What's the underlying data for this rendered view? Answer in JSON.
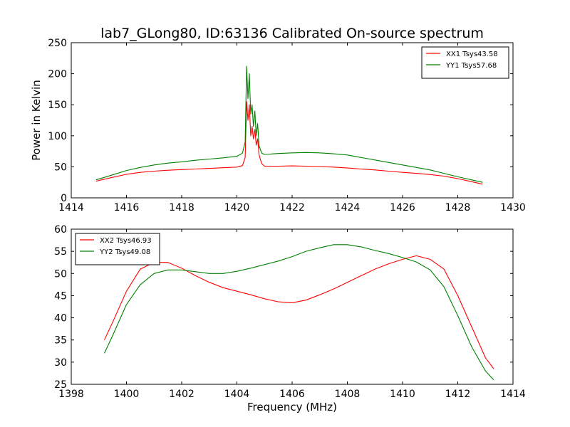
{
  "title": "lab7_GLong80, ID:63136 Calibrated On-source spectrum",
  "chart_data": [
    {
      "type": "line",
      "xlim": [
        1414,
        1430
      ],
      "ylim": [
        0,
        250
      ],
      "xticks": [
        1414,
        1416,
        1418,
        1420,
        1422,
        1424,
        1426,
        1428,
        1430
      ],
      "yticks": [
        0,
        50,
        100,
        150,
        200,
        250
      ],
      "xlabel": "",
      "ylabel": "Power in Kelvin",
      "legend": "top-right",
      "grid": false,
      "series": [
        {
          "name": "XX1 Tsys43.58",
          "color": "#ff0000",
          "x": [
            1414.9,
            1415.5,
            1416,
            1416.5,
            1417,
            1417.5,
            1418,
            1418.5,
            1419,
            1419.5,
            1420,
            1420.2,
            1420.3,
            1420.35,
            1420.4,
            1420.45,
            1420.5,
            1420.55,
            1420.6,
            1420.65,
            1420.7,
            1420.75,
            1420.8,
            1420.85,
            1420.9,
            1421,
            1421.5,
            1422,
            1422.5,
            1423,
            1423.5,
            1424,
            1424.5,
            1425,
            1425.5,
            1426,
            1426.5,
            1427,
            1427.5,
            1428,
            1428.5,
            1428.9
          ],
          "y": [
            27,
            33,
            38,
            41,
            43,
            44.5,
            45.5,
            46.5,
            47.5,
            48.5,
            49.5,
            52,
            65,
            155,
            125,
            150,
            100,
            115,
            95,
            110,
            85,
            95,
            70,
            62,
            55,
            51,
            51,
            51.5,
            51,
            50.5,
            49.5,
            48,
            46.5,
            45,
            43,
            41,
            39.5,
            37.5,
            35,
            31,
            26,
            22
          ]
        },
        {
          "name": "YY1 Tsys57.68",
          "color": "#008000",
          "x": [
            1414.9,
            1415.5,
            1416,
            1416.5,
            1417,
            1417.5,
            1418,
            1418.5,
            1419,
            1419.5,
            1420,
            1420.2,
            1420.3,
            1420.35,
            1420.4,
            1420.45,
            1420.5,
            1420.55,
            1420.6,
            1420.65,
            1420.7,
            1420.75,
            1420.8,
            1420.85,
            1420.9,
            1421,
            1421.5,
            1422,
            1422.5,
            1423,
            1423.5,
            1424,
            1424.5,
            1425,
            1425.5,
            1426,
            1426.5,
            1427,
            1427.5,
            1428,
            1428.5,
            1428.9
          ],
          "y": [
            29,
            37,
            44,
            49,
            53,
            56,
            58,
            60.5,
            62.5,
            64.5,
            67,
            72,
            90,
            212,
            160,
            200,
            135,
            150,
            115,
            140,
            100,
            120,
            85,
            78,
            72,
            70,
            71.5,
            72.5,
            73,
            72.5,
            71,
            69,
            65,
            61,
            57,
            53,
            49,
            45,
            39.5,
            34,
            29,
            25
          ]
        }
      ]
    },
    {
      "type": "line",
      "xlim": [
        1398,
        1414
      ],
      "ylim": [
        25,
        60
      ],
      "xticks": [
        1398,
        1400,
        1402,
        1404,
        1406,
        1408,
        1410,
        1412,
        1414
      ],
      "yticks": [
        25,
        30,
        35,
        40,
        45,
        50,
        55,
        60
      ],
      "xlabel": "Frequency (MHz)",
      "ylabel": "",
      "legend": "top-left",
      "grid": false,
      "series": [
        {
          "name": "XX2 Tsys46.93",
          "color": "#ff0000",
          "x": [
            1399.2,
            1399.5,
            1400,
            1400.5,
            1401,
            1401.5,
            1402,
            1402.5,
            1403,
            1403.5,
            1404,
            1404.5,
            1405,
            1405.5,
            1406,
            1406.5,
            1407,
            1407.5,
            1408,
            1408.5,
            1409,
            1409.5,
            1410,
            1410.5,
            1411,
            1411.5,
            1412,
            1412.5,
            1413,
            1413.3
          ],
          "y": [
            35,
            39,
            46,
            51,
            52.5,
            52.5,
            51.2,
            49.5,
            48,
            46.8,
            46,
            45.2,
            44.3,
            43.6,
            43.4,
            44,
            45.2,
            46.5,
            48,
            49.5,
            51,
            52.2,
            53.2,
            54,
            53.2,
            51,
            45,
            38,
            31,
            28.5
          ]
        },
        {
          "name": "YY2 Tsys49.08",
          "color": "#008000",
          "x": [
            1399.2,
            1399.5,
            1400,
            1400.5,
            1401,
            1401.5,
            1402,
            1402.5,
            1403,
            1403.5,
            1404,
            1404.5,
            1405,
            1405.5,
            1406,
            1406.5,
            1407,
            1407.5,
            1408,
            1408.5,
            1409,
            1409.5,
            1410,
            1410.5,
            1411,
            1411.5,
            1412,
            1412.5,
            1413,
            1413.3
          ],
          "y": [
            32,
            36,
            43,
            47.5,
            50,
            50.8,
            50.8,
            50.4,
            50,
            50,
            50.5,
            51.2,
            52,
            52.8,
            53.8,
            55,
            55.8,
            56.5,
            56.5,
            56,
            55.2,
            54.5,
            53.6,
            52.6,
            50.8,
            47,
            40.5,
            33.5,
            28,
            26
          ]
        }
      ]
    }
  ]
}
